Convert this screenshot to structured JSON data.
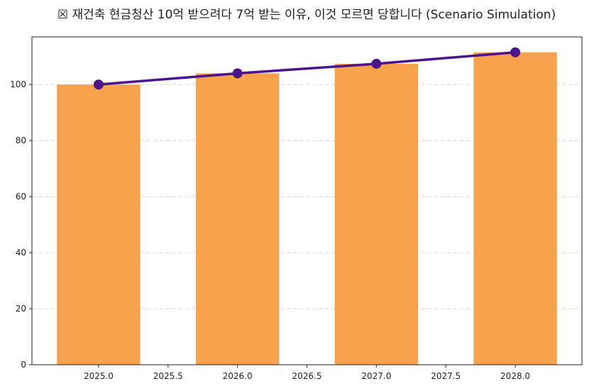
{
  "chart_data": {
    "type": "bar+line",
    "title": "☒ 재건축 현금청산 10억 받으려다 7억 받는 이유, 이것 모르면 당합니다 (Scenario Simulation)",
    "xlabel": "",
    "ylabel": "",
    "x": [
      2025,
      2026,
      2027,
      2028
    ],
    "series": [
      {
        "kind": "bar",
        "values": [
          100,
          104.0,
          107.4,
          111.5
        ],
        "color": "#F6A24C"
      },
      {
        "kind": "line",
        "marker": "circle",
        "values": [
          100,
          104.0,
          107.4,
          111.5
        ],
        "color": "#4A148C"
      }
    ],
    "xlim": [
      2024.52,
      2028.48
    ],
    "ylim": [
      0,
      117
    ],
    "xticks": [
      "2025.0",
      "2025.5",
      "2026.0",
      "2026.5",
      "2027.0",
      "2027.5",
      "2028.0"
    ],
    "yticks": [
      "0",
      "20",
      "40",
      "60",
      "80",
      "100"
    ],
    "grid": "y-dashed",
    "bar_width_years": 0.6
  }
}
